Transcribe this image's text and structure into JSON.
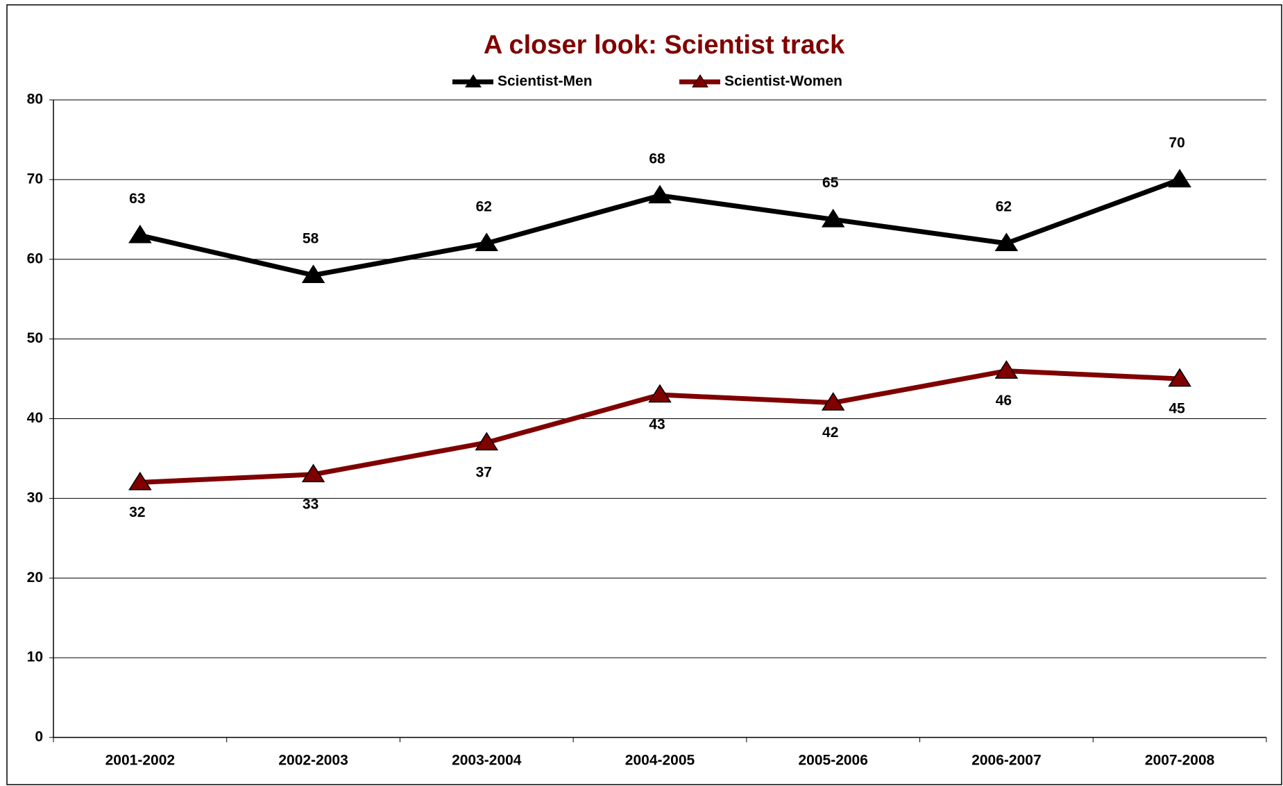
{
  "chart_data": {
    "type": "line",
    "title": "A closer look: Scientist track",
    "categories": [
      "2001-2002",
      "2002-2003",
      "2003-2004",
      "2004-2005",
      "2005-2006",
      "2006-2007",
      "2007-2008"
    ],
    "series": [
      {
        "name": "Scientist-Men",
        "color": "#000000",
        "values": [
          63,
          58,
          62,
          68,
          65,
          62,
          70
        ]
      },
      {
        "name": "Scientist-Women",
        "color": "#800000",
        "values": [
          32,
          33,
          37,
          43,
          42,
          46,
          45
        ]
      }
    ],
    "ylim": [
      0,
      80
    ],
    "yticks": [
      0,
      10,
      20,
      30,
      40,
      50,
      60,
      70,
      80
    ],
    "grid": true,
    "legend": "top"
  }
}
